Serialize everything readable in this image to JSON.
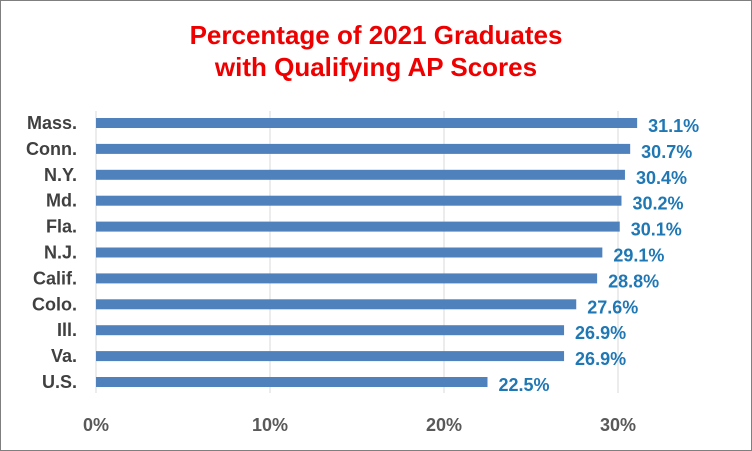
{
  "chart_data": {
    "type": "bar",
    "orientation": "horizontal",
    "title_lines": [
      "Percentage of 2021 Graduates",
      "with Qualifying AP Scores"
    ],
    "categories": [
      "Mass.",
      "Conn.",
      "N.Y.",
      "Md.",
      "Fla.",
      "N.J.",
      "Calif.",
      "Colo.",
      "Ill.",
      "Va.",
      "U.S."
    ],
    "values": [
      31.1,
      30.7,
      30.4,
      30.2,
      30.1,
      29.1,
      28.8,
      27.6,
      26.9,
      26.9,
      22.5
    ],
    "value_labels": [
      "31.1%",
      "30.7%",
      "30.4%",
      "30.2%",
      "30.1%",
      "29.1%",
      "28.8%",
      "27.6%",
      "26.9%",
      "26.9%",
      "22.5%"
    ],
    "highlight_category": "Va.",
    "xlim": [
      0,
      30
    ],
    "x_ticks": [
      "0%",
      "10%",
      "20%",
      "30%"
    ],
    "grid": "vertical",
    "colors": {
      "bar": "#4f81bd",
      "value_label": "#1f77b4",
      "highlight_label": "#ee0000",
      "title": "#ee0000",
      "gridline": "#d9d9d9",
      "axis_text": "#595959"
    }
  }
}
